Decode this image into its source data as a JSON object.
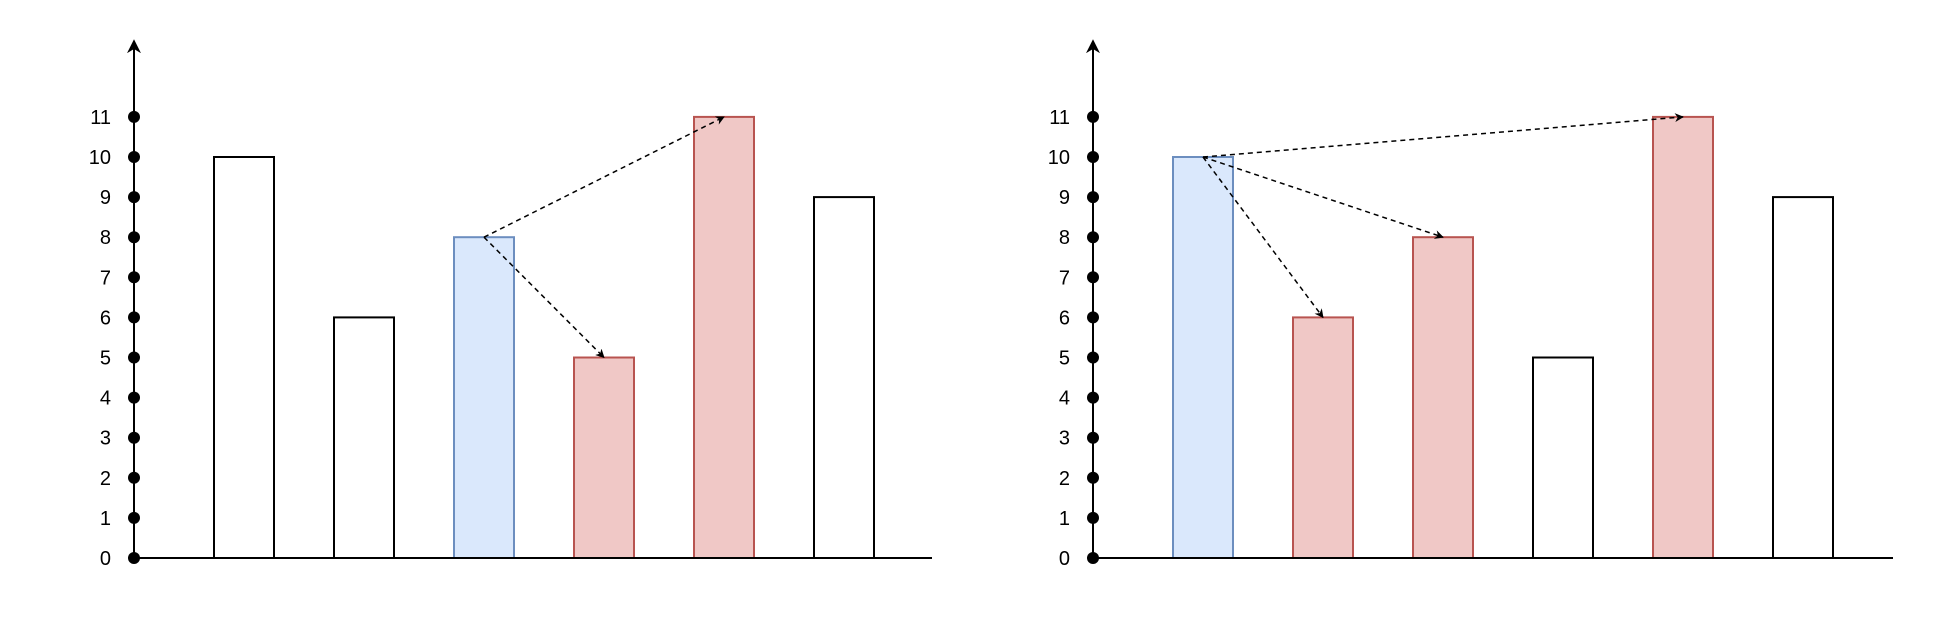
{
  "colors": {
    "axis": "#000000",
    "bar_plain_fill": "#ffffff",
    "bar_plain_stroke": "#000000",
    "bar_blue_fill": "#dae8fc",
    "bar_blue_stroke": "#6c8ebf",
    "bar_red_fill": "#f0c8c6",
    "bar_red_stroke": "#b85450",
    "arrow": "#000000"
  },
  "chart_data": [
    {
      "type": "bar",
      "ylim": [
        0,
        11
      ],
      "y_ticks": [
        "0",
        "1",
        "2",
        "3",
        "4",
        "5",
        "6",
        "7",
        "8",
        "9",
        "10",
        "11"
      ],
      "bars": [
        {
          "value": 10,
          "style": "plain"
        },
        {
          "value": 6,
          "style": "plain"
        },
        {
          "value": 8,
          "style": "blue"
        },
        {
          "value": 5,
          "style": "red"
        },
        {
          "value": 11,
          "style": "red"
        },
        {
          "value": 9,
          "style": "plain"
        }
      ],
      "arrows": [
        {
          "from_bar": 2,
          "to_bar": 4
        },
        {
          "from_bar": 2,
          "to_bar": 3
        }
      ]
    },
    {
      "type": "bar",
      "ylim": [
        0,
        11
      ],
      "y_ticks": [
        "0",
        "1",
        "2",
        "3",
        "4",
        "5",
        "6",
        "7",
        "8",
        "9",
        "10",
        "11"
      ],
      "bars": [
        {
          "value": 10,
          "style": "blue"
        },
        {
          "value": 6,
          "style": "red"
        },
        {
          "value": 8,
          "style": "red"
        },
        {
          "value": 5,
          "style": "plain"
        },
        {
          "value": 11,
          "style": "red"
        },
        {
          "value": 9,
          "style": "plain"
        }
      ],
      "arrows": [
        {
          "from_bar": 0,
          "to_bar": 4
        },
        {
          "from_bar": 0,
          "to_bar": 2
        },
        {
          "from_bar": 0,
          "to_bar": 1
        }
      ]
    }
  ]
}
